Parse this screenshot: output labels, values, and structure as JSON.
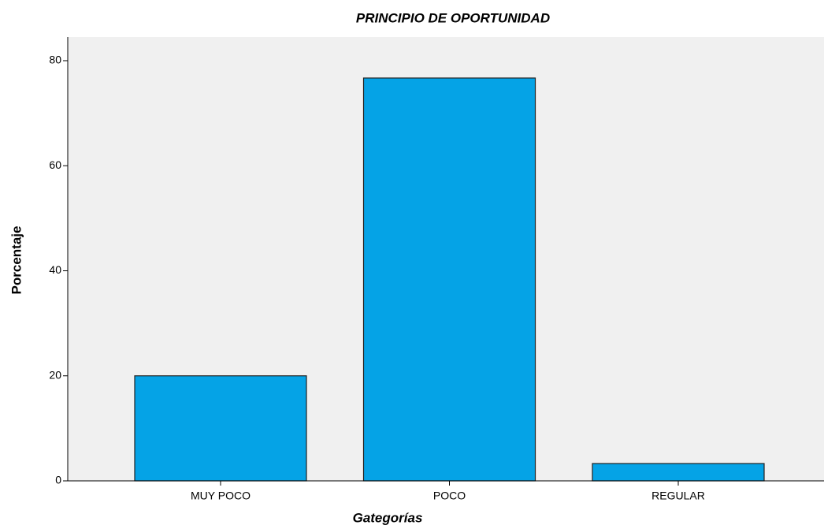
{
  "chart_data": {
    "type": "bar",
    "title": "PRINCIPIO DE OPORTUNIDAD",
    "x_label": "Gategorías",
    "y_label": "Porcentaje",
    "categories": [
      "MUY POCO",
      "POCO",
      "REGULAR"
    ],
    "values": [
      20,
      76.7,
      3.3
    ],
    "color": "#05a3e6",
    "ylim": [
      0,
      84.5
    ],
    "yticks": [
      0,
      20,
      40,
      60,
      80
    ],
    "grid": false
  }
}
